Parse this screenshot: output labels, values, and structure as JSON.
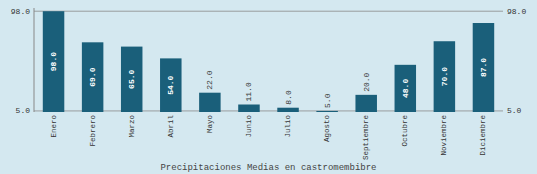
{
  "chart_data": {
    "type": "bar",
    "title": "Precipitaciones Medias en castromembibre",
    "categories": [
      "Enero",
      "Febrero",
      "Marzo",
      "Abril",
      "Mayo",
      "Junio",
      "Julio",
      "Agosto",
      "Septiembre",
      "Octubre",
      "Noviembre",
      "Diciembre"
    ],
    "values": [
      98.0,
      69.0,
      65.0,
      54.0,
      22.0,
      11.0,
      8.0,
      5.0,
      20.0,
      48.0,
      70.0,
      87.0
    ],
    "value_labels": [
      "98.0",
      "69.0",
      "65.0",
      "54.0",
      "22.0",
      "11.0",
      "8.0",
      "5.0",
      "20.0",
      "48.0",
      "70.0",
      "87.0"
    ],
    "data_labels": true,
    "color": "#1a5f7a",
    "ylim": [
      4,
      101
    ],
    "yticks": [
      {
        "value": 98,
        "label": "98.0"
      },
      {
        "value": 5,
        "label": "5.0"
      }
    ],
    "grid": true
  }
}
